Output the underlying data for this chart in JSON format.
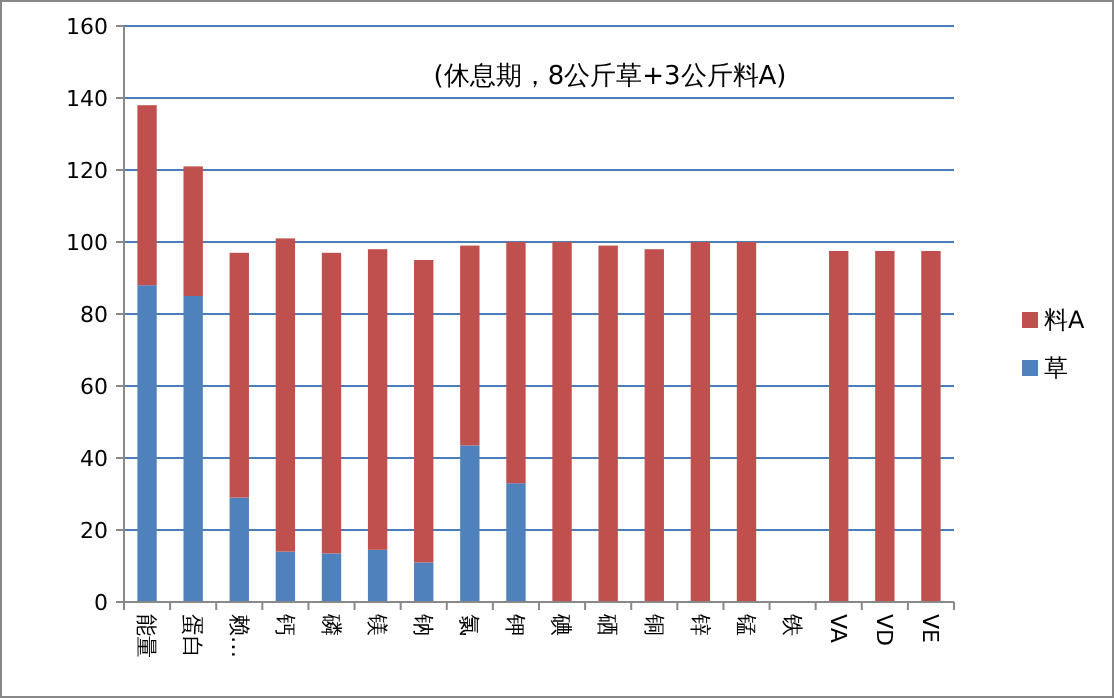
{
  "chart_data": {
    "type": "bar",
    "title": "(休息期，8公斤草+3公斤料A)",
    "categories": [
      "能量",
      "蛋白",
      "赖…",
      "钙",
      "磷",
      "镁",
      "钠",
      "氯",
      "钾",
      "碘",
      "硒",
      "铜",
      "锌",
      "锰",
      "铁",
      "VA",
      "VD",
      "VE"
    ],
    "stacked": true,
    "series": [
      {
        "name": "草",
        "color": "#4f81bd",
        "values": [
          88,
          85,
          29,
          14,
          13.5,
          14.5,
          11,
          43.5,
          33,
          0,
          0,
          0,
          0,
          0,
          null,
          0,
          0,
          0
        ]
      },
      {
        "name": "料A",
        "color": "#c0504d",
        "values": [
          50,
          36,
          68,
          87,
          83.5,
          83.5,
          84,
          55.5,
          67,
          100,
          99,
          98,
          100,
          100,
          null,
          97.5,
          97.5,
          97.5
        ]
      }
    ],
    "ylim": [
      0,
      160
    ],
    "yticks": [
      0,
      20,
      40,
      60,
      80,
      100,
      120,
      140,
      160
    ],
    "grid": "y",
    "legend": "right"
  }
}
